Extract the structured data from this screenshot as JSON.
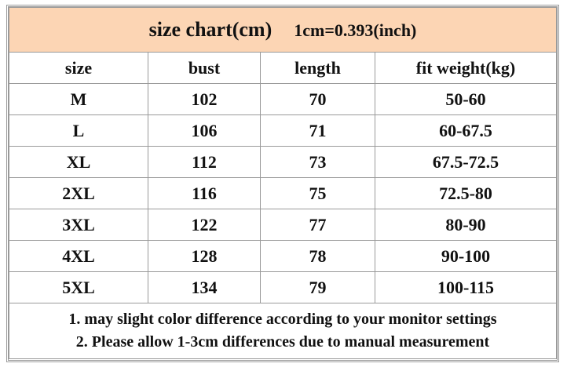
{
  "header": {
    "title": "size chart(cm)",
    "conversion": "1cm=0.393(inch)"
  },
  "table": {
    "columns": [
      "size",
      "bust",
      "length",
      "fit weight(kg)"
    ],
    "rows": [
      [
        "M",
        102,
        70,
        "50-60"
      ],
      [
        "L",
        106,
        71,
        "60-67.5"
      ],
      [
        "XL",
        112,
        73,
        "67.5-72.5"
      ],
      [
        "2XL",
        116,
        75,
        "72.5-80"
      ],
      [
        "3XL",
        122,
        77,
        "80-90"
      ],
      [
        "4XL",
        128,
        78,
        "90-100"
      ],
      [
        "5XL",
        134,
        79,
        "100-115"
      ]
    ]
  },
  "notes": [
    "1. may slight color difference according to your monitor settings",
    "2. Please allow 1-3cm differences due to manual measurement"
  ]
}
